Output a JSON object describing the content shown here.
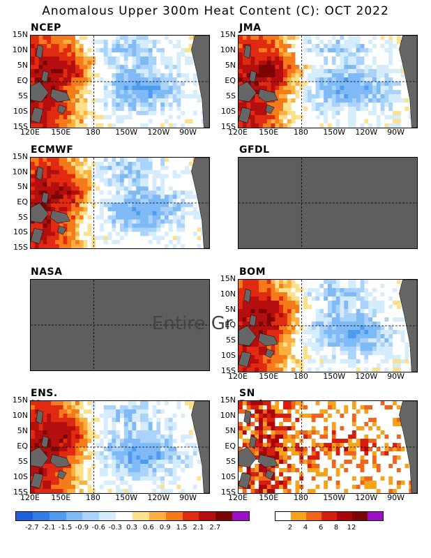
{
  "title": "Anomalous Upper 300m Heat Content (C): OCT 2022",
  "y_ticks": [
    "15N",
    "10N",
    "5N",
    "EQ",
    "5S",
    "10S",
    "15S"
  ],
  "x_ticks": [
    "120E",
    "150E",
    "180",
    "150W",
    "120W",
    "90W"
  ],
  "panels": [
    {
      "id": "ncep",
      "label": "NCEP",
      "has_data": true,
      "x_ticks_shown": true
    },
    {
      "id": "jma",
      "label": "JMA",
      "has_data": true,
      "x_ticks_shown": true
    },
    {
      "id": "ecmwf",
      "label": "ECMWF",
      "has_data": true,
      "x_ticks_shown": false
    },
    {
      "id": "gfdl",
      "label": "GFDL",
      "has_data": false,
      "x_ticks_shown": false
    },
    {
      "id": "nasa",
      "label": "NASA",
      "has_data": false,
      "x_ticks_shown": false
    },
    {
      "id": "bom",
      "label": "BOM",
      "has_data": true,
      "x_ticks_shown": true
    },
    {
      "id": "ens",
      "label": "ENS. Mean",
      "has_data": true,
      "x_ticks_shown": true
    },
    {
      "id": "sn",
      "label": "SN Ratio",
      "has_data": true,
      "x_ticks_shown": true
    }
  ],
  "overlay_text": "Entire Gr",
  "colorbar_anomaly": {
    "labels": [
      "-2.7",
      "-2.1",
      "-1.5",
      "-0.9",
      "-0.6",
      "-0.3",
      "0.3",
      "0.6",
      "0.9",
      "1.5",
      "2.1",
      "2.7"
    ],
    "colors": [
      "#1d60d8",
      "#2d7fe6",
      "#4d9cf0",
      "#7fbaf6",
      "#a9d3fa",
      "#d4ecfb",
      "#ffffff",
      "#fde08a",
      "#fcb040",
      "#f57a1a",
      "#e02a12",
      "#b40e0e",
      "#7d0505",
      "#9b10c8"
    ]
  },
  "colorbar_sn": {
    "labels": [
      "2",
      "4",
      "6",
      "8",
      "12"
    ],
    "colors": [
      "#ffffff",
      "#f7a21b",
      "#f2631b",
      "#d61d10",
      "#a8060b",
      "#7d0505",
      "#9b10c8"
    ]
  },
  "land_color": "#666666",
  "missing_color": "#5e5e5e"
}
